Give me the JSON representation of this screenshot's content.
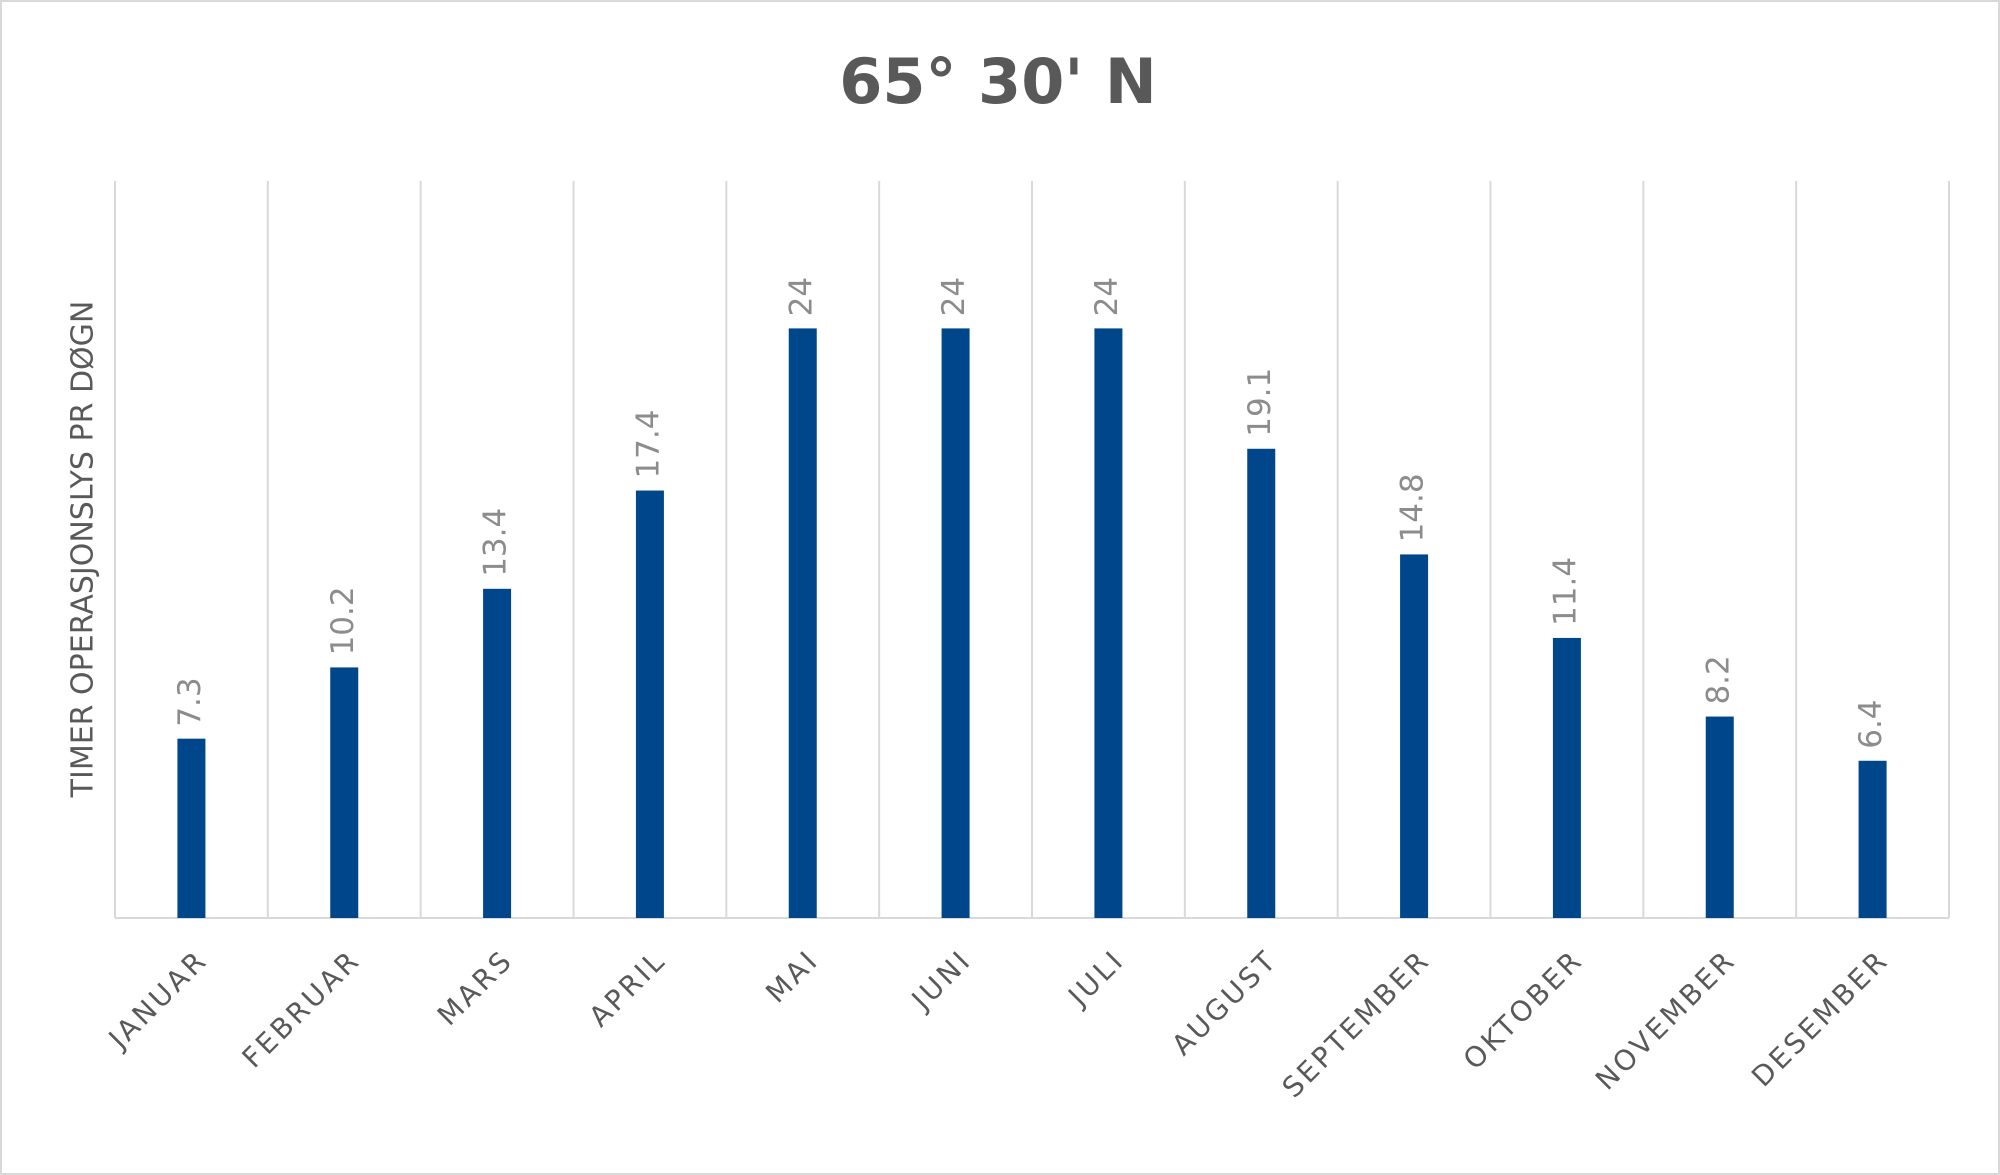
{
  "chart_data": {
    "type": "bar",
    "title": "65° 30' N",
    "y_label": "TIMER OPERASJONSLYS PR DØGN",
    "categories": [
      "JANUAR",
      "FEBRUAR",
      "MARS",
      "APRIL",
      "MAI",
      "JUNI",
      "JULI",
      "AUGUST",
      "SEPTEMBER",
      "OKTOBER",
      "NOVEMBER",
      "DESEMBER"
    ],
    "values": [
      7.3,
      10.2,
      13.4,
      17.4,
      24,
      24,
      24,
      19.1,
      14.8,
      11.4,
      8.2,
      6.4
    ],
    "color": "#00468b",
    "ylim": [
      0,
      30
    ]
  }
}
